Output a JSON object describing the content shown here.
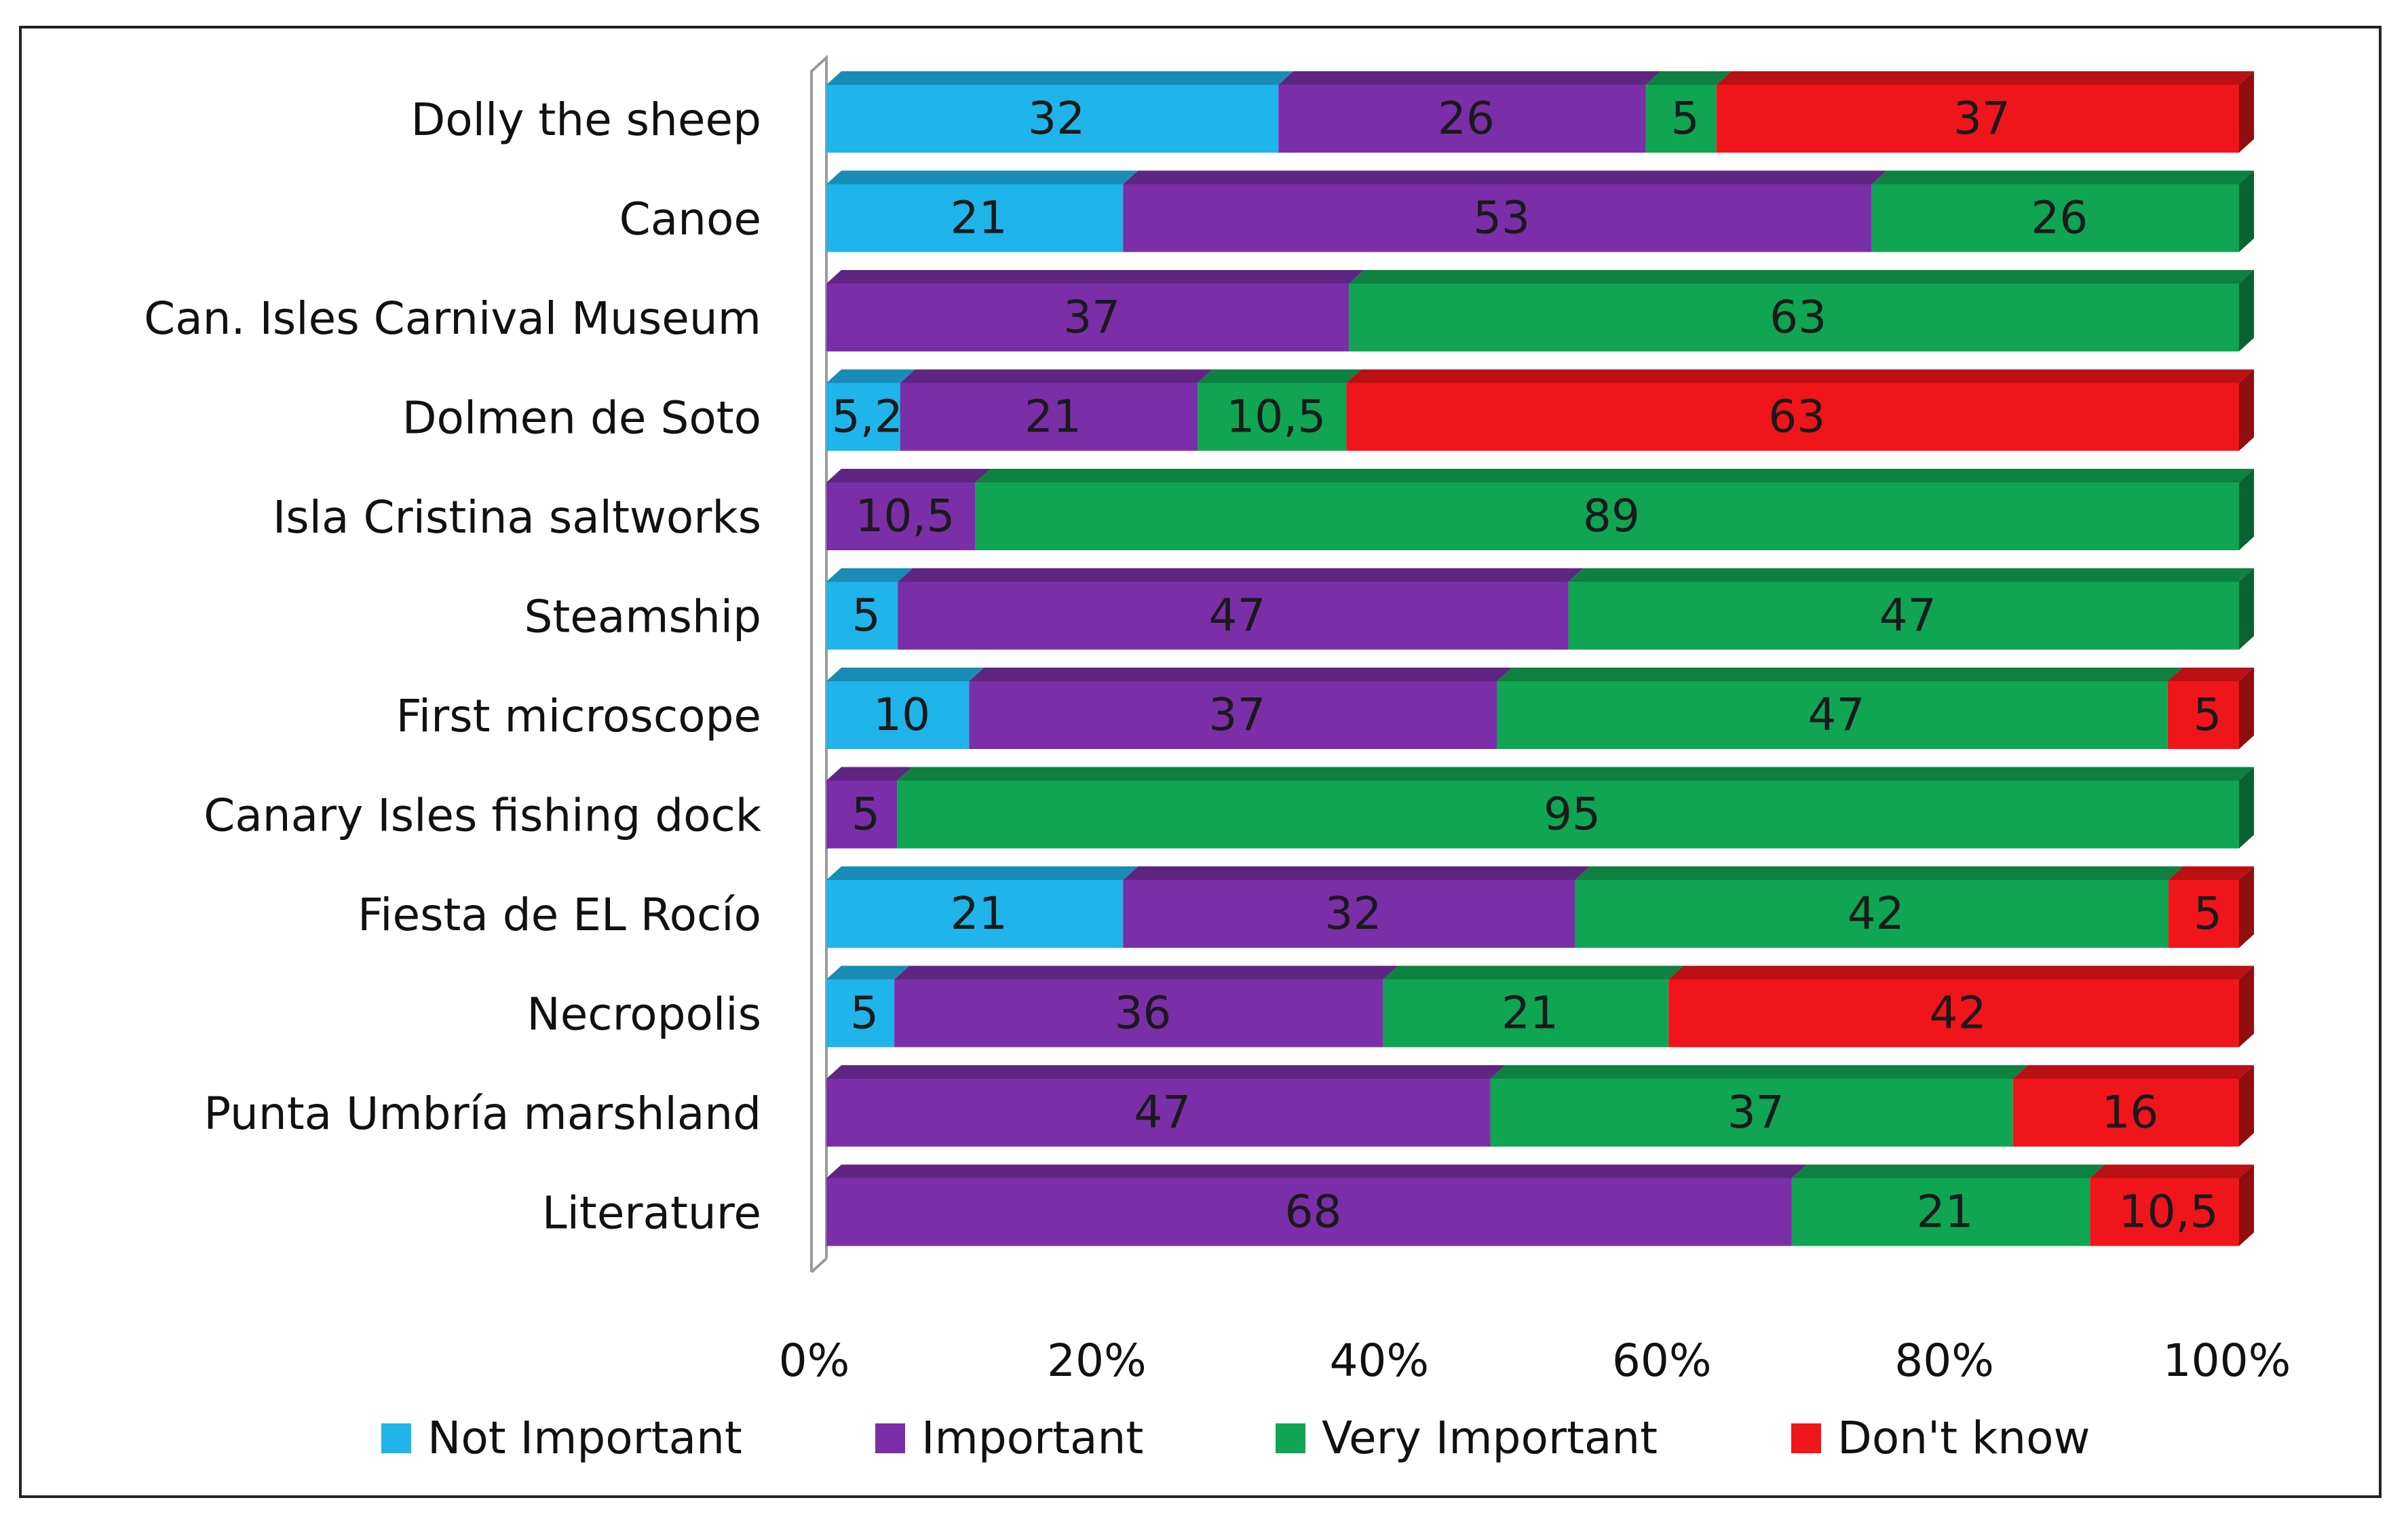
{
  "chart_data": {
    "type": "bar",
    "orientation": "horizontal",
    "stacked": "100%",
    "title": "",
    "xlabel": "",
    "ylabel": "",
    "xlim": [
      0,
      100
    ],
    "x_ticks": [
      "0%",
      "20%",
      "40%",
      "60%",
      "80%",
      "100%"
    ],
    "legend_position": "bottom",
    "categories": [
      "Dolly the sheep",
      "Canoe",
      "Can. Isles Carnival Museum",
      "Dolmen de Soto",
      "Isla Cristina saltworks",
      "Steamship",
      "First microscope",
      "Canary Isles fishing dock",
      "Fiesta de EL Rocío",
      "Necropolis",
      "Punta Umbría marshland",
      "Literature"
    ],
    "series": [
      {
        "name": "Not Important",
        "color": "#1fb4ea",
        "values": [
          32,
          21,
          null,
          5.2,
          null,
          5,
          10,
          null,
          21,
          5,
          null,
          null
        ],
        "labels": [
          "32",
          "21",
          "",
          "5,2",
          "",
          "5",
          "10",
          "",
          "21",
          "5",
          "",
          ""
        ]
      },
      {
        "name": "Important",
        "color": "#7a2fa8",
        "values": [
          26,
          53,
          37,
          21,
          10.5,
          47,
          37,
          5,
          32,
          36,
          47,
          68
        ],
        "labels": [
          "26",
          "53",
          "37",
          "21",
          "10,5",
          "47",
          "37",
          "5",
          "32",
          "36",
          "47",
          "68"
        ]
      },
      {
        "name": "Very Important",
        "color": "#0fa552",
        "values": [
          5,
          26,
          63,
          10.5,
          89,
          47,
          47,
          95,
          42,
          21,
          37,
          21
        ],
        "labels": [
          "5",
          "26",
          "63",
          "10,5",
          "89",
          "47",
          "47",
          "95",
          "42",
          "21",
          "37",
          "21"
        ]
      },
      {
        "name": "Don't know",
        "color": "#f0151a",
        "values": [
          37,
          null,
          null,
          63,
          null,
          null,
          5,
          null,
          5,
          42,
          16,
          10.5
        ],
        "labels": [
          "37",
          "",
          "",
          "63",
          "",
          "",
          "5",
          "",
          "5",
          "42",
          "16",
          "10,5"
        ]
      }
    ]
  }
}
